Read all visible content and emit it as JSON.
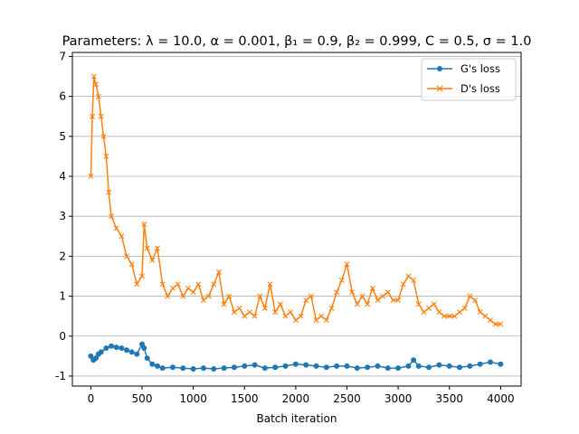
{
  "chart_data": {
    "type": "line",
    "title": "Parameters: λ = 10.0, α = 0.001, β₁ = 0.9, β₂ = 0.999, C = 0.5, σ = 1.0",
    "xlabel": "Batch iteration",
    "ylabel": "",
    "xlim": [
      -180,
      4200
    ],
    "ylim": [
      -1.25,
      7.1
    ],
    "xticks": [
      0,
      500,
      1000,
      1500,
      2000,
      2500,
      3000,
      3500,
      4000
    ],
    "yticks": [
      -1,
      0,
      1,
      2,
      3,
      4,
      5,
      6,
      7
    ],
    "grid": "horizontal",
    "legend_position": "top-right",
    "series": [
      {
        "name": "G's loss",
        "color": "#1f77b4",
        "marker": "circle",
        "x": [
          0,
          25,
          50,
          75,
          100,
          150,
          200,
          250,
          300,
          350,
          400,
          450,
          500,
          520,
          550,
          600,
          650,
          700,
          800,
          900,
          1000,
          1100,
          1200,
          1300,
          1400,
          1500,
          1600,
          1700,
          1800,
          1900,
          2000,
          2100,
          2200,
          2300,
          2400,
          2500,
          2600,
          2700,
          2800,
          2900,
          3000,
          3100,
          3150,
          3200,
          3300,
          3400,
          3500,
          3600,
          3700,
          3800,
          3900,
          4000
        ],
        "y": [
          -0.5,
          -0.6,
          -0.55,
          -0.45,
          -0.4,
          -0.3,
          -0.25,
          -0.28,
          -0.3,
          -0.35,
          -0.4,
          -0.45,
          -0.2,
          -0.3,
          -0.55,
          -0.7,
          -0.75,
          -0.8,
          -0.78,
          -0.8,
          -0.82,
          -0.8,
          -0.82,
          -0.8,
          -0.78,
          -0.75,
          -0.72,
          -0.8,
          -0.78,
          -0.75,
          -0.7,
          -0.72,
          -0.75,
          -0.78,
          -0.75,
          -0.75,
          -0.8,
          -0.78,
          -0.75,
          -0.8,
          -0.8,
          -0.75,
          -0.6,
          -0.75,
          -0.78,
          -0.72,
          -0.75,
          -0.78,
          -0.75,
          -0.7,
          -0.65,
          -0.7
        ]
      },
      {
        "name": "D's loss",
        "color": "#ff7f0e",
        "marker": "x",
        "x": [
          0,
          15,
          30,
          50,
          75,
          100,
          125,
          150,
          175,
          200,
          250,
          300,
          350,
          400,
          450,
          500,
          520,
          550,
          600,
          650,
          700,
          750,
          800,
          850,
          900,
          950,
          1000,
          1050,
          1100,
          1150,
          1200,
          1250,
          1300,
          1350,
          1400,
          1450,
          1500,
          1550,
          1600,
          1650,
          1700,
          1750,
          1800,
          1850,
          1900,
          1950,
          2000,
          2050,
          2100,
          2150,
          2200,
          2250,
          2300,
          2350,
          2400,
          2450,
          2500,
          2550,
          2600,
          2650,
          2700,
          2750,
          2800,
          2850,
          2900,
          2950,
          3000,
          3050,
          3100,
          3150,
          3200,
          3250,
          3300,
          3350,
          3400,
          3450,
          3500,
          3550,
          3600,
          3650,
          3700,
          3750,
          3800,
          3850,
          3900,
          3950,
          4000
        ],
        "y": [
          4.0,
          5.5,
          6.5,
          6.3,
          6.0,
          5.5,
          5.0,
          4.5,
          3.6,
          3.0,
          2.7,
          2.5,
          2.0,
          1.8,
          1.3,
          1.5,
          2.8,
          2.2,
          1.9,
          2.2,
          1.3,
          1.0,
          1.2,
          1.3,
          1.0,
          1.2,
          1.1,
          1.3,
          0.9,
          1.0,
          1.3,
          1.6,
          0.8,
          1.0,
          0.6,
          0.7,
          0.5,
          0.6,
          0.5,
          1.0,
          0.7,
          1.3,
          0.6,
          0.8,
          0.5,
          0.6,
          0.4,
          0.5,
          0.9,
          1.0,
          0.4,
          0.5,
          0.4,
          0.7,
          1.1,
          1.4,
          1.8,
          1.1,
          0.8,
          1.0,
          0.8,
          1.2,
          0.9,
          1.0,
          1.1,
          0.9,
          0.9,
          1.3,
          1.5,
          1.4,
          0.8,
          0.6,
          0.7,
          0.8,
          0.6,
          0.5,
          0.5,
          0.5,
          0.6,
          0.7,
          1.0,
          0.9,
          0.6,
          0.5,
          0.4,
          0.3,
          0.3
        ]
      }
    ]
  }
}
